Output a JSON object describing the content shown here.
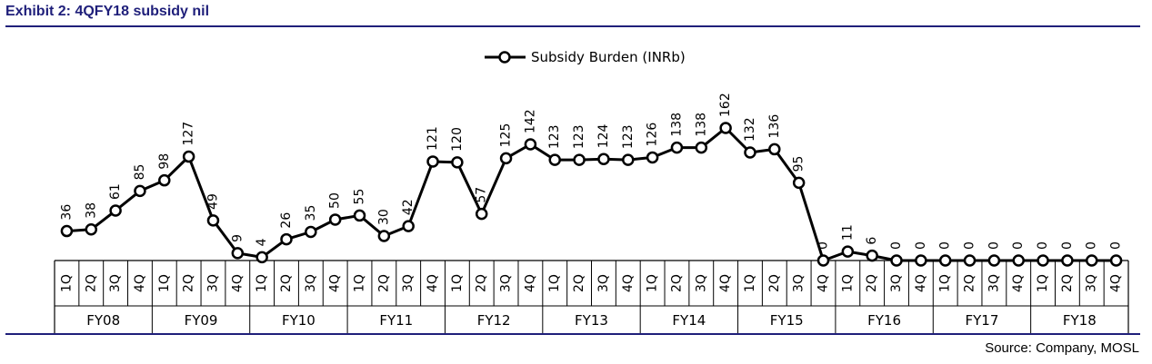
{
  "title": "Exhibit 2: 4QFY18 subsidy nil",
  "source": "Source: Company, MOSL",
  "chart_data": {
    "type": "line",
    "legend_position": "top-center",
    "series": [
      {
        "name": "Subsidy Burden (INRb)",
        "color": "#000000",
        "values": [
          36,
          38,
          61,
          85,
          98,
          127,
          49,
          9,
          4,
          26,
          35,
          50,
          55,
          30,
          42,
          121,
          120,
          57,
          125,
          142,
          123,
          123,
          124,
          123,
          126,
          138,
          138,
          162,
          132,
          136,
          95,
          0,
          11,
          6,
          0,
          0,
          0,
          0,
          0,
          0,
          0,
          0,
          0,
          0
        ]
      }
    ],
    "quarters": [
      "1Q",
      "2Q",
      "3Q",
      "4Q"
    ],
    "years": [
      "FY08",
      "FY09",
      "FY10",
      "FY11",
      "FY12",
      "FY13",
      "FY14",
      "FY15",
      "FY16",
      "FY17",
      "FY18"
    ],
    "data_labels": [
      "36",
      "38",
      "61",
      "85",
      "98",
      "127",
      "49",
      "9",
      "4",
      "26",
      "35",
      "50",
      "55",
      "30",
      "42",
      "121",
      "120",
      "57",
      "125",
      "142",
      "123",
      "123",
      "124",
      "123",
      "126",
      "138",
      "138",
      "162",
      "132",
      "136",
      "95",
      "0",
      "11",
      "6",
      "0",
      "0",
      "0",
      "0",
      "0",
      "0",
      "0",
      "0",
      "0",
      "0"
    ],
    "ylim": [
      0,
      162
    ],
    "grid": false
  }
}
